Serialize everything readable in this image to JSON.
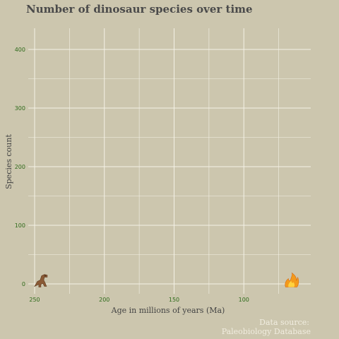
{
  "colors": {
    "background": "#ccc6ae",
    "grid": "#f4f1e6",
    "tick_text": "#2e6b1a",
    "title_text": "#4a4a4a",
    "axis_text": "#444444",
    "source_text": "#f1ede0"
  },
  "chart_data": {
    "type": "scatter",
    "title": "Number of dinosaur species over time",
    "xlabel": "Age in millions of years (Ma)",
    "ylabel": "Species count",
    "x_axis_reversed": true,
    "xlim": [
      250,
      65
    ],
    "ylim": [
      0,
      400
    ],
    "x_ticks": [
      250,
      200,
      150,
      100
    ],
    "y_ticks": [
      0,
      100,
      200,
      300,
      400
    ],
    "grid": true,
    "source_lines": [
      "Data source:",
      "Paleobiology Database"
    ],
    "markers": [
      {
        "icon": "t-rex-icon",
        "x": 246,
        "y": 3
      },
      {
        "icon": "fire-icon",
        "x": 66,
        "y": 3
      }
    ]
  }
}
